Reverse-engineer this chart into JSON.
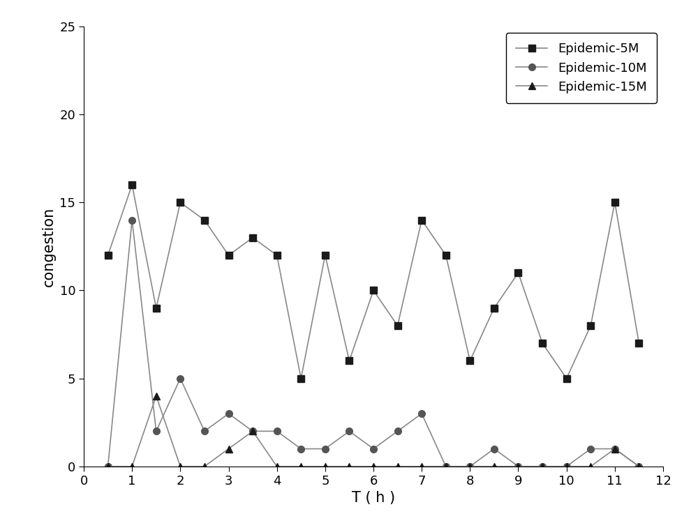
{
  "x": [
    0.5,
    1.0,
    1.5,
    2.0,
    2.5,
    3.0,
    3.5,
    4.0,
    4.5,
    5.0,
    5.5,
    6.0,
    6.5,
    7.0,
    7.5,
    8.0,
    8.5,
    9.0,
    9.5,
    10.0,
    10.5,
    11.0,
    11.5
  ],
  "epidemic_5m": [
    12,
    16,
    9,
    15,
    14,
    12,
    13,
    12,
    5,
    12,
    6,
    10,
    8,
    14,
    12,
    6,
    9,
    11,
    7,
    5,
    8,
    15,
    7
  ],
  "epidemic_10m": [
    0,
    14,
    2,
    5,
    2,
    3,
    2,
    2,
    1,
    1,
    2,
    1,
    2,
    3,
    0,
    0,
    1,
    0,
    0,
    0,
    1,
    1,
    0
  ],
  "epidemic_15m": [
    0,
    0,
    4,
    0,
    0,
    1,
    2,
    0,
    0,
    0,
    0,
    0,
    0,
    0,
    0,
    0,
    0,
    0,
    0,
    0,
    0,
    1,
    0
  ],
  "line_color": "#888888",
  "marker_color_5m": "#1a1a1a",
  "marker_color_10m": "#555555",
  "marker_color_15m": "#1a1a1a",
  "xlabel": "T ( h )",
  "ylabel": "congestion",
  "xlim": [
    0,
    12
  ],
  "ylim": [
    0,
    25
  ],
  "xticks": [
    0,
    1,
    2,
    3,
    4,
    5,
    6,
    7,
    8,
    9,
    10,
    11,
    12
  ],
  "yticks": [
    0,
    5,
    10,
    15,
    20,
    25
  ],
  "legend_labels": [
    "Epidemic-5M",
    "Epidemic-10M",
    "Epidemic-15M"
  ],
  "legend_loc": "upper right",
  "figsize": [
    10.0,
    7.6
  ],
  "dpi": 100,
  "tick_labelsize": 13,
  "xlabel_fontsize": 15,
  "ylabel_fontsize": 15,
  "legend_fontsize": 13
}
